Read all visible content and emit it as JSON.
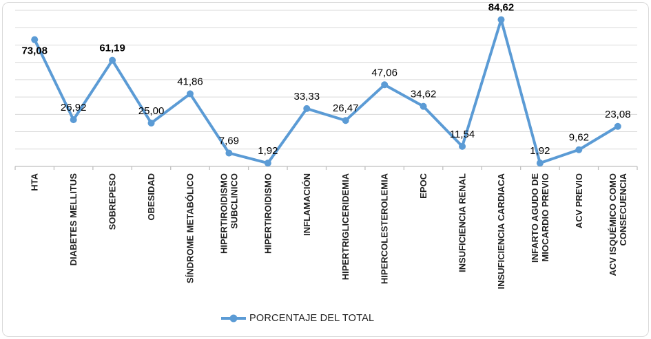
{
  "chart_data": {
    "type": "line",
    "title": "",
    "xlabel": "",
    "ylabel": "",
    "categories": [
      "HTA",
      "DIABETES MELLITUS",
      "SOBREPESO",
      "OBESIDAD",
      "SÍNDROME METABÓLICO",
      "HIPERTIROIDISMO\nSUBCLINICO",
      "HIPERTIROIDISMO",
      "INFLAMACIÓN",
      "HIPERTRIGLICERIDEMIA",
      "HIPERCOLESTEROLEMIA",
      "EPOC",
      "INSUFICIENCIA RENAL",
      "INSUFICIENCIA CARDIACA",
      "INFARTO AGUDO DE\nMIOCARDIO PREVIO",
      "ACV PREVIO",
      "ACV ISQUÉMICO COMO\nCONSECUENCIA"
    ],
    "series": [
      {
        "name": "PORCENTAJE DEL TOTAL",
        "color": "#5B9BD5",
        "values": [
          73.08,
          26.92,
          61.19,
          25.0,
          41.86,
          7.69,
          1.92,
          33.33,
          26.47,
          47.06,
          34.62,
          11.54,
          84.62,
          1.92,
          9.62,
          23.08
        ],
        "labels": [
          "73,08",
          "26,92",
          "61,19",
          "25,00",
          "41,86",
          "7,69",
          "1,92",
          "33,33",
          "26,47",
          "47,06",
          "34,62",
          "11,54",
          "84,62",
          "1,92",
          "9,62",
          "23,08"
        ],
        "bold_labels": [
          0,
          2,
          12
        ],
        "label_below": [
          0
        ]
      }
    ],
    "ylim": [
      0,
      90
    ],
    "grid_step": 10,
    "grid": true,
    "y_axis_labels_visible": false,
    "legend_position": "bottom",
    "legend_icon": "line-marker-icon",
    "gridline_color": "#D9D9D9",
    "axis_color": "#BFBFBF",
    "category_label_color": "#1F1F1F",
    "data_label_color": "#000000"
  }
}
